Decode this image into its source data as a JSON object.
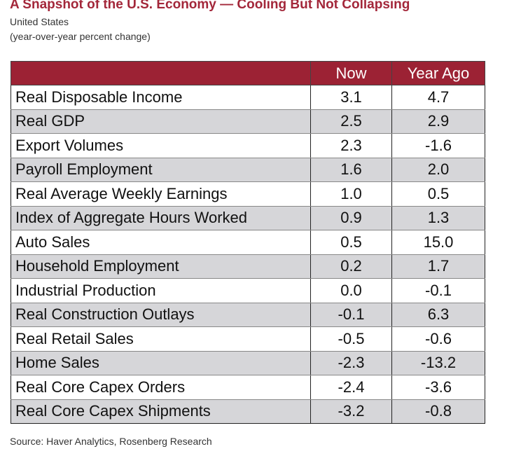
{
  "title": "A Snapshot of the U.S. Economy — Cooling But Not Collapsing",
  "subtitle": "United States",
  "units_note": "(year-over-year percent change)",
  "source": "Source: Haver Analytics, Rosenberg Research",
  "colors": {
    "header_bg": "#9c2234",
    "title": "#a3273a",
    "stripe": "#d6d6d9"
  },
  "chart_data": {
    "type": "table",
    "title": "A Snapshot of the U.S. Economy — Cooling But Not Collapsing",
    "columns": [
      "",
      "Now",
      "Year Ago"
    ],
    "rows": [
      {
        "label": "Real Disposable Income",
        "now": "3.1",
        "year_ago": "4.7"
      },
      {
        "label": "Real GDP",
        "now": "2.5",
        "year_ago": "2.9"
      },
      {
        "label": "Export Volumes",
        "now": "2.3",
        "year_ago": "-1.6"
      },
      {
        "label": "Payroll Employment",
        "now": "1.6",
        "year_ago": "2.0"
      },
      {
        "label": "Real Average Weekly Earnings",
        "now": "1.0",
        "year_ago": "0.5"
      },
      {
        "label": "Index of Aggregate Hours Worked",
        "now": "0.9",
        "year_ago": "1.3"
      },
      {
        "label": "Auto Sales",
        "now": "0.5",
        "year_ago": "15.0"
      },
      {
        "label": "Household Employment",
        "now": "0.2",
        "year_ago": "1.7"
      },
      {
        "label": "Industrial Production",
        "now": "0.0",
        "year_ago": "-0.1"
      },
      {
        "label": "Real Construction Outlays",
        "now": "-0.1",
        "year_ago": "6.3"
      },
      {
        "label": "Real Retail Sales",
        "now": "-0.5",
        "year_ago": "-0.6"
      },
      {
        "label": "Home Sales",
        "now": "-2.3",
        "year_ago": "-13.2"
      },
      {
        "label": "Real Core Capex Orders",
        "now": "-2.4",
        "year_ago": "-3.6"
      },
      {
        "label": "Real Core Capex Shipments",
        "now": "-3.2",
        "year_ago": "-0.8"
      }
    ]
  }
}
